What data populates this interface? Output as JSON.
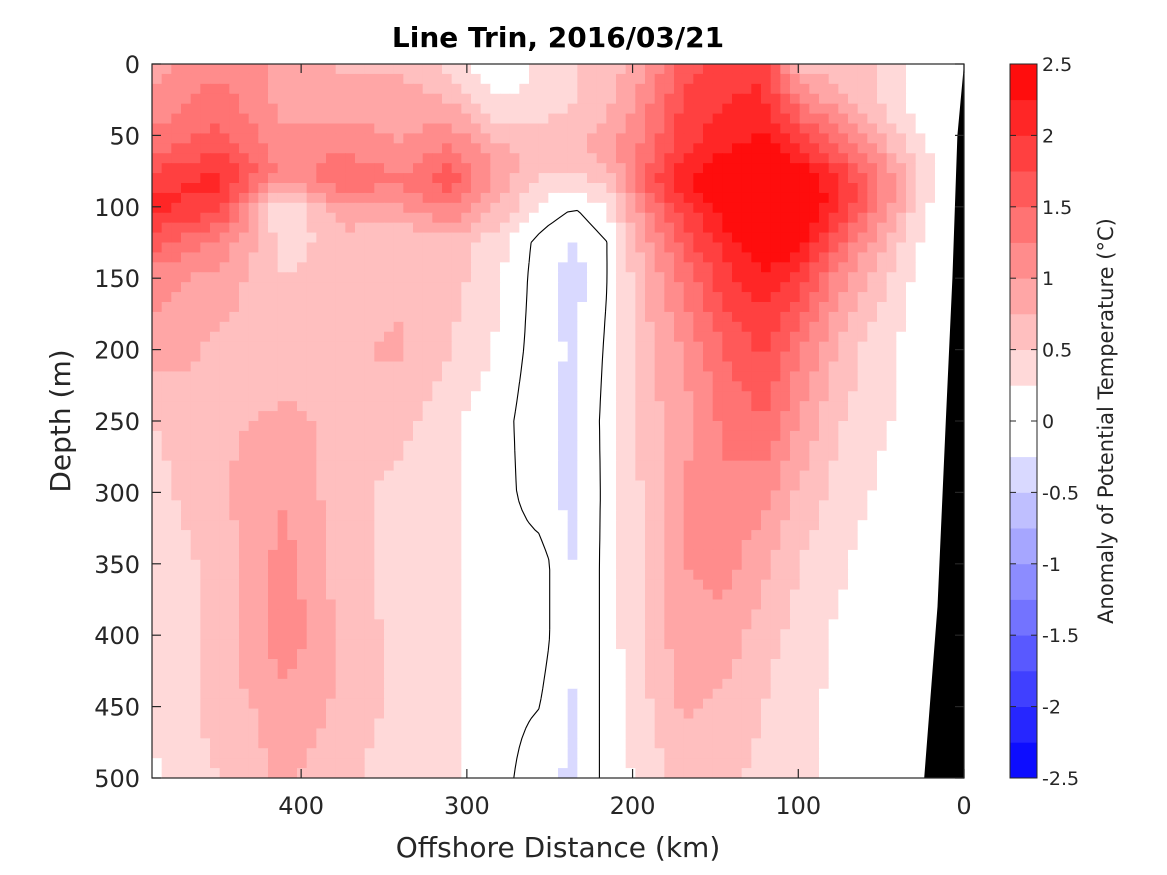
{
  "chart_data": {
    "type": "heatmap",
    "title": "Line Trin, 2016/03/21",
    "xlabel": "Offshore Distance (km)",
    "ylabel": "Depth (m)",
    "xlim": [
      490,
      0
    ],
    "ylim": [
      0,
      500
    ],
    "x_reversed": true,
    "y_reversed": true,
    "x_ticks": [
      "400",
      "300",
      "200",
      "100",
      "0"
    ],
    "x_tick_values": [
      400,
      300,
      200,
      100,
      0
    ],
    "y_ticks": [
      "0",
      "50",
      "100",
      "150",
      "200",
      "250",
      "300",
      "350",
      "400",
      "450",
      "500"
    ],
    "y_tick_values": [
      0,
      50,
      100,
      150,
      200,
      250,
      300,
      350,
      400,
      450,
      500
    ],
    "colorbar": {
      "label": "Anomaly of Potential Temperature (°C)",
      "range": [
        -2.5,
        2.5
      ],
      "step": 0.25,
      "ticks": [
        "2.5",
        "2",
        "1.5",
        "1",
        "0.5",
        "0",
        "-0.5",
        "-1",
        "-1.5",
        "-2",
        "-2.5"
      ],
      "tick_values": [
        2.5,
        2,
        1.5,
        1,
        0.5,
        0,
        -0.5,
        -1,
        -1.5,
        -2,
        -2.5
      ],
      "max_color": "#ff0000",
      "min_color": "#0000ff",
      "mid_color": "#ffffff"
    },
    "grid": {
      "x": [
        490,
        450,
        410,
        375,
        340,
        310,
        280,
        255,
        235,
        215,
        195,
        170,
        145,
        120,
        100,
        75,
        50,
        25,
        0
      ],
      "y": [
        0,
        30,
        60,
        80,
        100,
        125,
        150,
        200,
        250,
        300,
        350,
        400,
        450,
        500
      ],
      "z": [
        [
          0.9,
          1.2,
          0.9,
          0.7,
          0.7,
          0.4,
          0.0,
          0.3,
          0.5,
          0.6,
          0.9,
          1.6,
          1.9,
          1.9,
          0.7,
          0.5,
          0.5,
          0.0,
          0.0
        ],
        [
          1.1,
          1.4,
          0.9,
          0.9,
          0.9,
          0.8,
          0.3,
          0.4,
          0.5,
          0.7,
          1.1,
          1.8,
          2.0,
          2.1,
          1.4,
          0.9,
          0.5,
          0.1,
          0.0
        ],
        [
          1.4,
          1.7,
          1.1,
          1.2,
          1.0,
          1.3,
          0.8,
          0.7,
          0.7,
          0.9,
          1.3,
          1.9,
          2.2,
          2.4,
          2.0,
          1.5,
          0.9,
          0.3,
          0.0
        ],
        [
          1.9,
          2.1,
          1.1,
          1.5,
          1.3,
          1.7,
          0.9,
          0.5,
          0.4,
          0.6,
          1.5,
          2.2,
          2.6,
          2.6,
          2.6,
          2.0,
          1.3,
          0.4,
          0.0
        ],
        [
          2.1,
          1.9,
          0.1,
          1.0,
          1.0,
          1.3,
          0.7,
          0.2,
          0.0,
          0.3,
          1.1,
          1.9,
          2.4,
          2.8,
          2.7,
          2.0,
          1.2,
          0.3,
          0.0
        ],
        [
          1.6,
          1.2,
          0.4,
          0.6,
          0.5,
          0.6,
          0.3,
          -0.1,
          -0.3,
          0.0,
          0.8,
          1.6,
          2.1,
          2.6,
          2.4,
          1.5,
          0.8,
          0.2,
          0.0
        ],
        [
          1.1,
          0.9,
          0.5,
          0.6,
          0.7,
          0.6,
          0.3,
          -0.15,
          -0.35,
          0.0,
          0.7,
          1.3,
          1.9,
          2.2,
          1.9,
          1.1,
          0.6,
          0.1,
          0.0
        ],
        [
          0.9,
          0.7,
          0.6,
          0.7,
          0.8,
          0.5,
          0.2,
          -0.15,
          -0.3,
          0.05,
          0.6,
          1.0,
          1.5,
          1.8,
          1.3,
          0.7,
          0.3,
          0.1,
          0.0
        ],
        [
          0.5,
          0.7,
          0.8,
          0.7,
          0.6,
          0.3,
          0.1,
          -0.2,
          -0.3,
          0.1,
          0.6,
          0.9,
          1.3,
          1.5,
          1.0,
          0.5,
          0.3,
          0.1,
          0.0
        ],
        [
          0.4,
          0.7,
          1.0,
          0.6,
          0.4,
          0.3,
          0.1,
          -0.15,
          -0.35,
          0.1,
          0.5,
          1.0,
          1.2,
          1.1,
          0.7,
          0.4,
          0.2,
          0.0,
          0.0
        ],
        [
          0.3,
          0.6,
          1.1,
          0.6,
          0.4,
          0.3,
          0.1,
          0.1,
          -0.3,
          0.1,
          0.5,
          1.0,
          1.1,
          0.8,
          0.5,
          0.3,
          0.1,
          0.0,
          0.0
        ],
        [
          0.3,
          0.6,
          1.2,
          0.7,
          0.4,
          0.3,
          0.1,
          0.1,
          -0.3,
          0.1,
          0.5,
          0.9,
          0.9,
          0.6,
          0.4,
          0.2,
          0.1,
          0.0,
          0.0
        ],
        [
          0.3,
          0.6,
          0.9,
          0.7,
          0.4,
          0.3,
          0.1,
          0.0,
          -0.3,
          0.1,
          0.4,
          0.8,
          0.7,
          0.5,
          0.3,
          0.2,
          0.1,
          0.0,
          0.0
        ],
        [
          0.2,
          0.5,
          0.8,
          0.6,
          0.3,
          0.3,
          0.1,
          -0.2,
          -0.3,
          0.1,
          0.3,
          0.6,
          0.6,
          0.4,
          0.3,
          0.2,
          0.1,
          0.0,
          0.0
        ]
      ]
    },
    "bathymetry": {
      "fill": "#000000",
      "points": [
        [
          24,
          500
        ],
        [
          16,
          380
        ],
        [
          11,
          250
        ],
        [
          7,
          150
        ],
        [
          4,
          50
        ],
        [
          0,
          0
        ],
        [
          0,
          500
        ]
      ]
    },
    "contour_level": 0,
    "contour_color": "#000000"
  }
}
